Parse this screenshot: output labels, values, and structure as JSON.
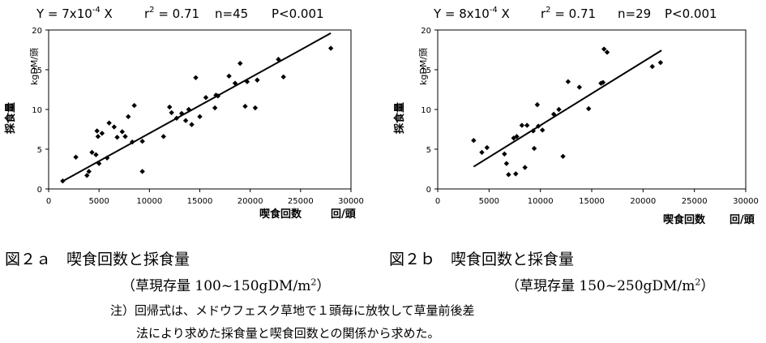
{
  "chart_data": [
    {
      "type": "scatter",
      "equation": "Y = 7x10",
      "equation_exp": "-4",
      "equation_tail": " X",
      "r2_label": "r",
      "r2_value": " = 0.71",
      "n": "n=45",
      "p": "P<0.001",
      "ylabel": "採食量",
      "yunit": "kgDM/頭",
      "xlabel": "喫食回数",
      "xunit": "回/頭",
      "xlim": [
        0,
        30000
      ],
      "ylim": [
        0,
        20
      ],
      "xticks": [
        "0",
        "5000",
        "10000",
        "15000",
        "20000",
        "25000",
        "30000"
      ],
      "yticks": [
        "0",
        "5",
        "10",
        "15",
        "20"
      ],
      "regression": {
        "slope": 0.0007,
        "x": [
          1500,
          28000
        ]
      },
      "points": [
        [
          1400,
          1.0
        ],
        [
          2700,
          4.0
        ],
        [
          3800,
          1.7
        ],
        [
          4000,
          2.2
        ],
        [
          4300,
          4.6
        ],
        [
          4700,
          4.3
        ],
        [
          4800,
          7.3
        ],
        [
          4900,
          6.6
        ],
        [
          5000,
          3.2
        ],
        [
          5300,
          7.0
        ],
        [
          5800,
          3.9
        ],
        [
          6000,
          8.3
        ],
        [
          6500,
          7.8
        ],
        [
          6800,
          6.5
        ],
        [
          7300,
          7.2
        ],
        [
          7600,
          6.6
        ],
        [
          7900,
          9.1
        ],
        [
          8300,
          5.9
        ],
        [
          8500,
          10.5
        ],
        [
          9300,
          6.0
        ],
        [
          9300,
          2.2
        ],
        [
          11400,
          6.6
        ],
        [
          12000,
          10.3
        ],
        [
          12200,
          9.6
        ],
        [
          12700,
          8.9
        ],
        [
          13200,
          9.5
        ],
        [
          13600,
          8.6
        ],
        [
          13900,
          10.0
        ],
        [
          14200,
          8.1
        ],
        [
          14600,
          14.0
        ],
        [
          15000,
          9.1
        ],
        [
          15600,
          11.5
        ],
        [
          16500,
          10.2
        ],
        [
          16600,
          11.8
        ],
        [
          16800,
          11.7
        ],
        [
          17900,
          14.2
        ],
        [
          18500,
          13.3
        ],
        [
          19000,
          15.8
        ],
        [
          19500,
          10.4
        ],
        [
          19700,
          13.5
        ],
        [
          20500,
          10.2
        ],
        [
          20700,
          13.7
        ],
        [
          22800,
          16.3
        ],
        [
          23300,
          14.1
        ],
        [
          28000,
          17.7
        ]
      ]
    },
    {
      "type": "scatter",
      "equation": "Y = 8x10",
      "equation_exp": "-4",
      "equation_tail": " X",
      "r2_label": "r",
      "r2_value": " = 0.71",
      "n": "n=29",
      "p": "P<0.001",
      "ylabel": "採食量",
      "yunit": "kgDM/頭",
      "xlabel": "喫食回数",
      "xunit": "回/頭",
      "xlim": [
        0,
        30000
      ],
      "ylim": [
        0,
        20
      ],
      "xticks": [
        "0",
        "5000",
        "10000",
        "15000",
        "20000",
        "25000",
        "30000"
      ],
      "yticks": [
        "0",
        "5",
        "10",
        "15",
        "20"
      ],
      "regression": {
        "slope": 0.0008,
        "x": [
          3500,
          21800
        ]
      },
      "points": [
        [
          3500,
          6.1
        ],
        [
          4300,
          4.6
        ],
        [
          4800,
          5.2
        ],
        [
          6500,
          4.4
        ],
        [
          6700,
          3.2
        ],
        [
          6900,
          1.8
        ],
        [
          7400,
          6.4
        ],
        [
          7600,
          1.9
        ],
        [
          7700,
          6.6
        ],
        [
          8200,
          8.0
        ],
        [
          8500,
          2.7
        ],
        [
          8700,
          8.0
        ],
        [
          9300,
          7.3
        ],
        [
          9400,
          5.1
        ],
        [
          9700,
          10.6
        ],
        [
          9800,
          7.9
        ],
        [
          10200,
          7.4
        ],
        [
          11300,
          9.4
        ],
        [
          11800,
          10.0
        ],
        [
          12200,
          4.1
        ],
        [
          12700,
          13.5
        ],
        [
          13800,
          12.8
        ],
        [
          14700,
          10.1
        ],
        [
          15900,
          13.3
        ],
        [
          16100,
          13.4
        ],
        [
          16200,
          17.6
        ],
        [
          16500,
          17.2
        ],
        [
          20900,
          15.4
        ],
        [
          21700,
          15.9
        ]
      ]
    }
  ],
  "captions": {
    "a_title": "図２ａ　喫食回数と採食量",
    "a_sub": "（草現存量 100~150gDM/m",
    "a_sub_sup": "2",
    "a_sub_end": "）",
    "b_title": "図２ｂ　喫食回数と採食量",
    "b_sub": "（草現存量 150~250gDM/m",
    "b_sub_sup": "2",
    "b_sub_end": "）"
  },
  "note": {
    "line1": "注）回帰式は、メドウフェスク草地で１頭毎に放牧して草量前後差",
    "line2": "法により求めた採食量と喫食回数との関係から求めた。"
  }
}
